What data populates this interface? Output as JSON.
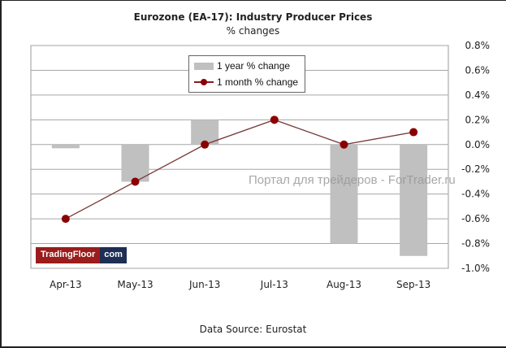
{
  "header": {
    "title": "Eurozone (EA-17): Industry Producer Prices",
    "subtitle": "% changes"
  },
  "footer": {
    "source": "Data Source: Eurostat"
  },
  "watermark": "Портал для трейдеров - ForTrader.ru",
  "logo": {
    "left": "TradingFloor",
    "right": "com",
    "colors": {
      "left": "#9b1c1c",
      "right": "#1e2e55"
    }
  },
  "chart_data": {
    "type": "bar",
    "title": "Eurozone (EA-17): Industry Producer Prices",
    "subtitle": "% changes",
    "xlabel": "",
    "ylabel": "",
    "categories": [
      "Apr-13",
      "May-13",
      "Jun-13",
      "Jul-13",
      "Aug-13",
      "Sep-13"
    ],
    "series": [
      {
        "name": "1 year % change",
        "type": "bar",
        "color": "#c0c0c0",
        "values": [
          -0.03,
          -0.3,
          0.2,
          0.0,
          -0.8,
          -0.9
        ]
      },
      {
        "name": "1 month % change",
        "type": "line",
        "color": "#8b0000",
        "values": [
          -0.6,
          -0.3,
          0.0,
          0.2,
          0.0,
          0.1
        ]
      }
    ],
    "ylim": [
      -1.0,
      0.8
    ],
    "yticks": [
      "0.8%",
      "0.6%",
      "0.4%",
      "0.2%",
      "0.0%",
      "-0.2%",
      "-0.4%",
      "-0.6%",
      "-0.8%",
      "-1.0%"
    ],
    "ytick_values": [
      0.8,
      0.6,
      0.4,
      0.2,
      0.0,
      -0.2,
      -0.4,
      -0.6,
      -0.8,
      -1.0
    ],
    "y_axis_side": "right",
    "grid": true,
    "legend": "top-center",
    "source": "Data Source: Eurostat"
  }
}
